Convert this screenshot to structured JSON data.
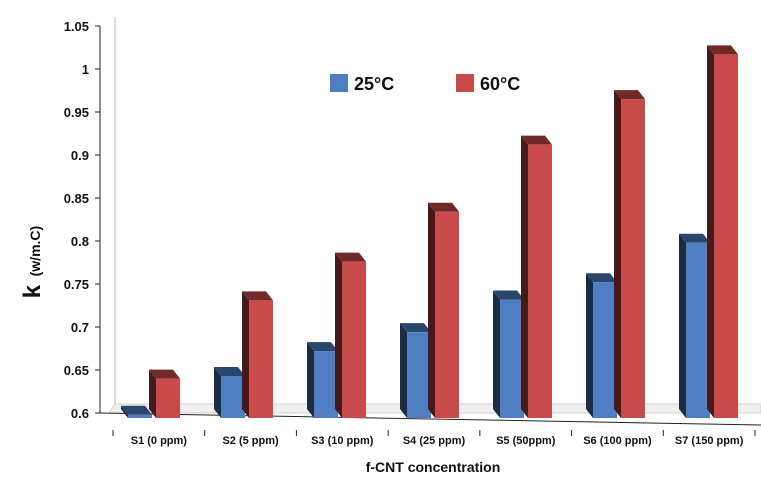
{
  "chart_data": {
    "type": "bar",
    "categories": [
      "S1 (0 ppm)",
      "S2 (5 ppm)",
      "S3 (10 ppm)",
      "S4 (25 ppm)",
      "S5 (50ppm)",
      "S6 (100 ppm)",
      "S7 (150 ppm)"
    ],
    "series": [
      {
        "name": "25°C",
        "color": "#4F7FC2",
        "values": [
          0.598,
          0.643,
          0.672,
          0.694,
          0.732,
          0.752,
          0.798
        ]
      },
      {
        "name": "60°C",
        "color": "#C94A4A",
        "values": [
          0.64,
          0.731,
          0.776,
          0.834,
          0.912,
          0.965,
          1.017
        ]
      }
    ],
    "title": "",
    "xlabel": "f-CNT  concentration",
    "ylabel_main": "k",
    "ylabel_unit": "(w/m.C)",
    "ylim": [
      0.6,
      1.05
    ],
    "yticks": [
      "0.6",
      "0.65",
      "0.7",
      "0.75",
      "0.8",
      "0.85",
      "0.9",
      "0.95",
      "1",
      "1.05"
    ],
    "legend_placement": "top-center",
    "grid": false
  }
}
